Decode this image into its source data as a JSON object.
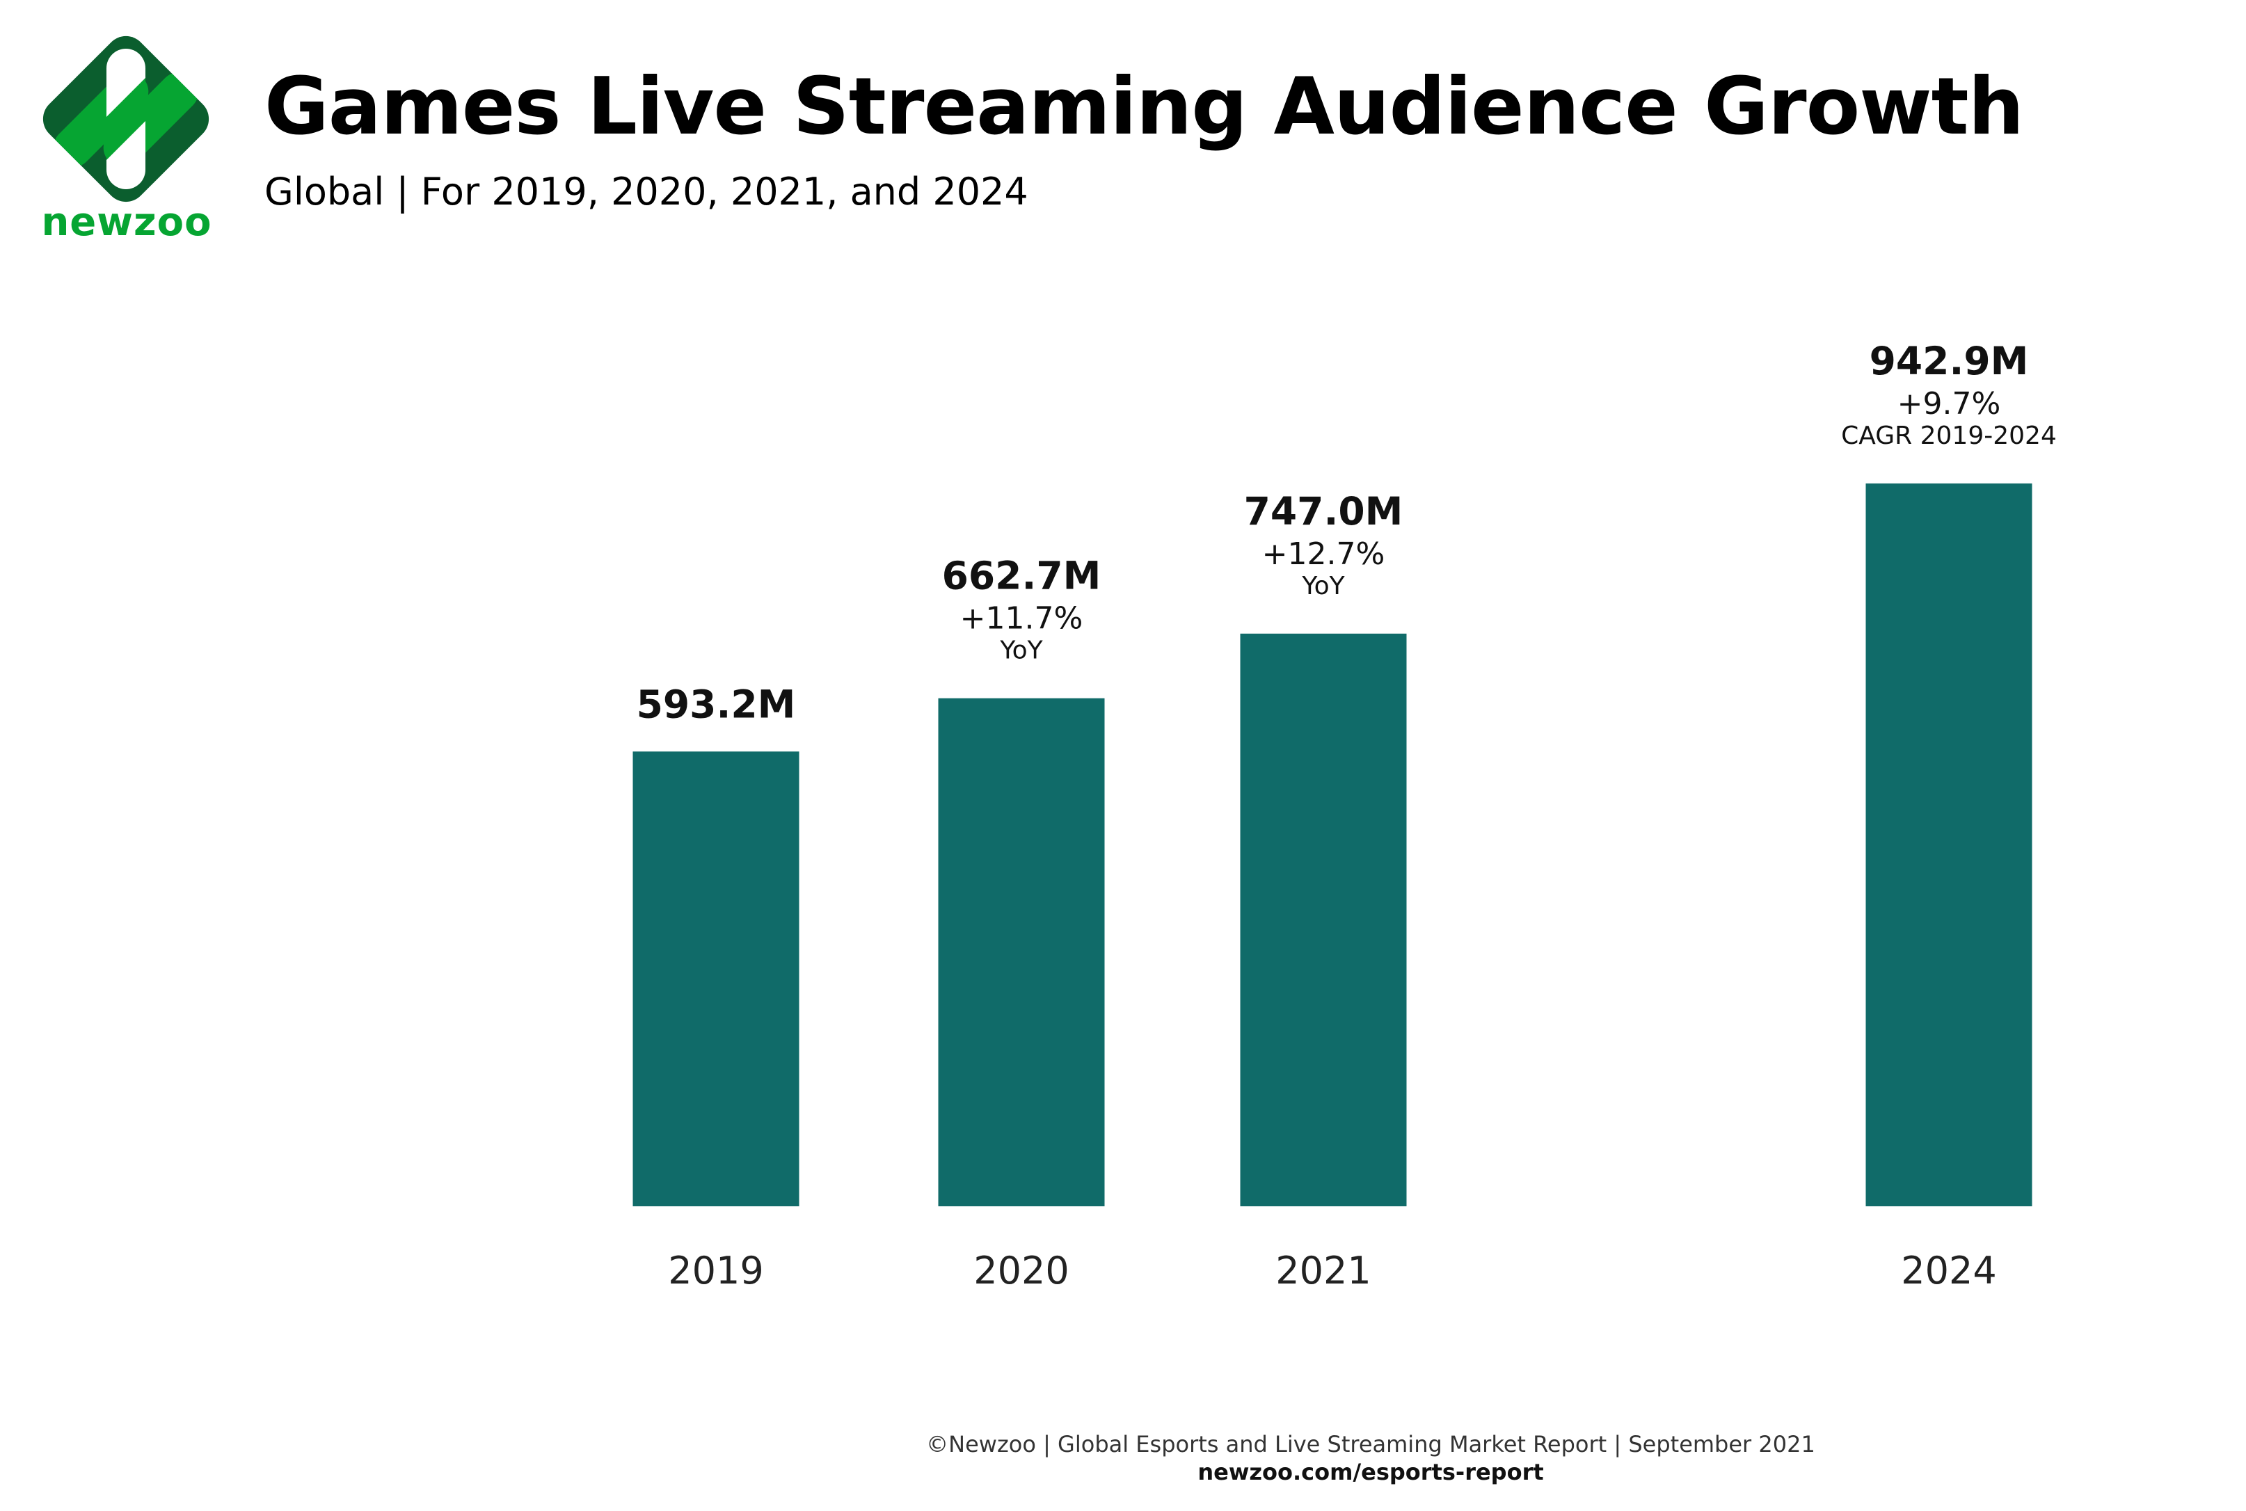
{
  "brand": {
    "name": "newzoo",
    "colors": {
      "dark_green": "#0b5e2e",
      "bright_green": "#06a532",
      "white": "#ffffff"
    }
  },
  "header": {
    "title": "Games Live Streaming Audience Growth",
    "subtitle": "Global | For 2019, 2020, 2021, and 2024"
  },
  "footer": {
    "credit": "©Newzoo | Global Esports and Live Streaming Market Report | September 2021",
    "link": "newzoo.com/esports-report"
  },
  "chart_data": {
    "type": "bar",
    "title": "Games Live Streaming Audience Growth",
    "subtitle": "Global | For 2019, 2020, 2021, and 2024",
    "xlabel": "",
    "ylabel": "",
    "ylim": [
      0,
      942.9
    ],
    "unit": "M",
    "grid": false,
    "legend": "none",
    "bar_color": "#106b69",
    "categories": [
      "2019",
      "2020",
      "2021",
      "2024"
    ],
    "values": [
      593.2,
      662.7,
      747.0,
      942.9
    ],
    "value_labels": [
      "593.2M",
      "662.7M",
      "747.0M",
      "942.9M"
    ],
    "growth_labels": [
      "",
      "+11.7%",
      "+12.7%",
      "+9.7%"
    ],
    "growth_notes": [
      "",
      "YoY",
      "YoY",
      "CAGR 2019-2024"
    ]
  }
}
